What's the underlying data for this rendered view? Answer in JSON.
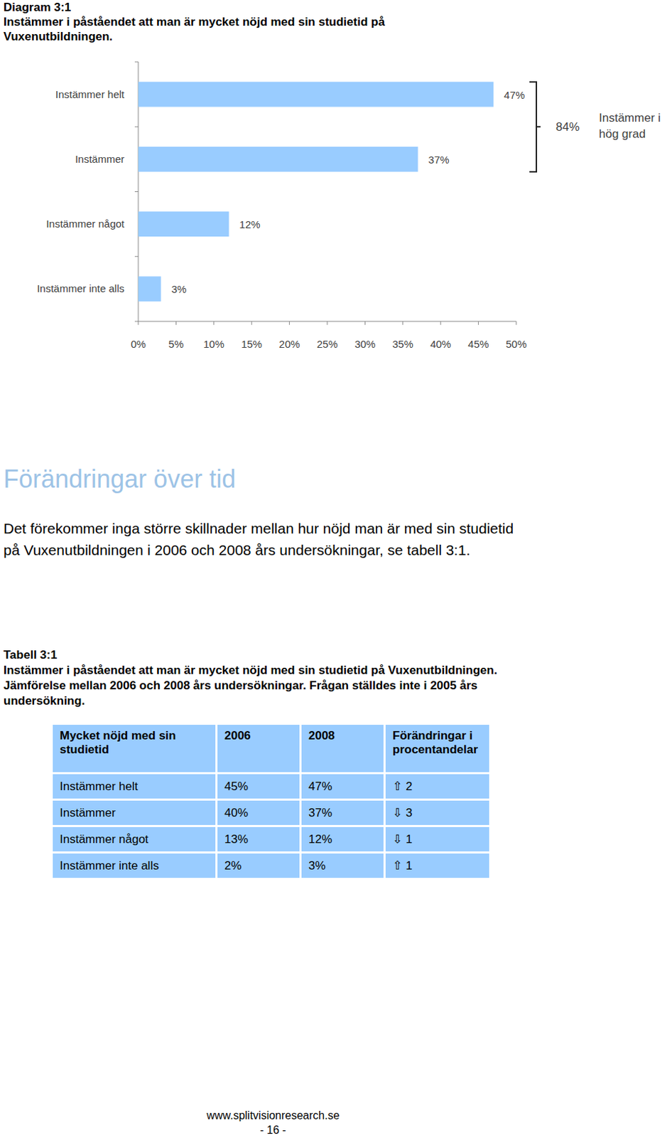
{
  "chart_data": {
    "type": "bar",
    "orientation": "horizontal",
    "title": "Diagram 3:1",
    "subtitle": "Instämmer i påståendet att man är mycket nöjd med sin studietid på Vuxenutbildningen.",
    "categories": [
      "Instämmer helt",
      "Instämmer",
      "Instämmer något",
      "Instämmer inte alls"
    ],
    "values": [
      47,
      37,
      12,
      3
    ],
    "value_labels": [
      "47%",
      "37%",
      "12%",
      "3%"
    ],
    "data_labels": true,
    "color": "#99ccff",
    "xlim": [
      0,
      50
    ],
    "xticks": [
      {
        "value": 0,
        "label": "0%"
      },
      {
        "value": 5,
        "label": "5%"
      },
      {
        "value": 10,
        "label": "10%"
      },
      {
        "value": 15,
        "label": "15%"
      },
      {
        "value": 20,
        "label": "20%"
      },
      {
        "value": 25,
        "label": "25%"
      },
      {
        "value": 30,
        "label": "30%"
      },
      {
        "value": 35,
        "label": "35%"
      },
      {
        "value": 40,
        "label": "40%"
      },
      {
        "value": 45,
        "label": "45%"
      },
      {
        "value": 50,
        "label": "50%"
      }
    ],
    "grid": false,
    "annotations": [
      {
        "value": 84,
        "label": "84%",
        "text": "Instämmer i hög grad"
      }
    ]
  },
  "section": {
    "heading": "Förändringar över tid",
    "paragraph": "Det förekommer inga större skillnader mellan hur nöjd man är med sin studietid på Vuxenutbildningen i 2006 och 2008 års undersökningar, se tabell 3:1."
  },
  "table": {
    "label": "Tabell 3:1",
    "caption": "Instämmer i påståendet att man är mycket nöjd med sin studietid på Vuxenutbildningen. Jämförelse mellan 2006 och 2008 års undersökningar. Frågan ställdes inte i 2005 års undersökning.",
    "header": [
      "Mycket nöjd med sin studietid",
      "2006",
      "2008",
      "Förändringar i procentandelar"
    ],
    "rows": [
      [
        "Instämmer helt",
        "45%",
        "47%",
        "⇧ 2"
      ],
      [
        "Instämmer",
        "40%",
        "37%",
        "⇩ 3"
      ],
      [
        "Instämmer något",
        "13%",
        "12%",
        "⇩ 1"
      ],
      [
        "Instämmer inte alls",
        "2%",
        "3%",
        "⇧ 1"
      ]
    ]
  },
  "footer": {
    "url": "www.splitvisionresearch.se",
    "page": "- 16 -"
  }
}
